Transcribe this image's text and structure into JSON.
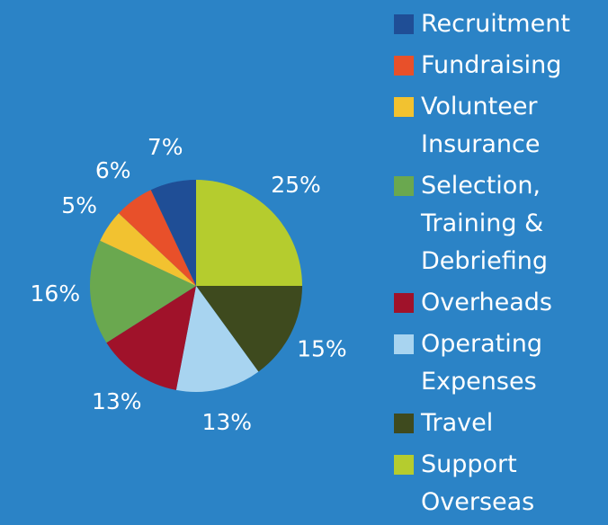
{
  "chart_data": {
    "type": "pie",
    "series": [
      {
        "name": "Recruitment",
        "color": "#1f4e96",
        "values": [
          7
        ],
        "value_labels": [
          "7%"
        ]
      },
      {
        "name": "Fundraising",
        "color": "#e8502a",
        "values": [
          6
        ],
        "value_labels": [
          "6%"
        ]
      },
      {
        "name": "Volunteer Insurance",
        "color": "#f2c230",
        "values": [
          5
        ],
        "value_labels": [
          "5%"
        ]
      },
      {
        "name": "Selection, Training & Debriefing",
        "color": "#6aa84f",
        "values": [
          16
        ],
        "value_labels": [
          "16%"
        ]
      },
      {
        "name": "Overheads",
        "color": "#a0122a",
        "values": [
          13
        ],
        "value_labels": [
          "13%"
        ]
      },
      {
        "name": "Operating Expenses",
        "color": "#a8d4f0",
        "values": [
          13
        ],
        "value_labels": [
          "13%"
        ]
      },
      {
        "name": "Travel",
        "color": "#3e4a1e",
        "values": [
          15
        ],
        "value_labels": [
          "15%"
        ]
      },
      {
        "name": "Support Overseas",
        "color": "#b5cc2e",
        "values": [
          25
        ],
        "value_labels": [
          "25%"
        ]
      }
    ]
  }
}
